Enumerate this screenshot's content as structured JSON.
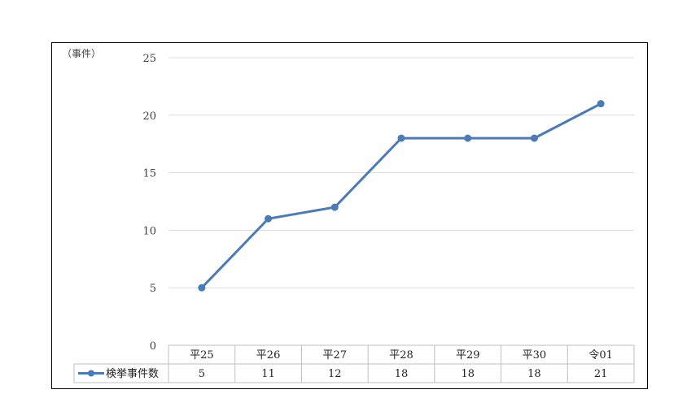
{
  "chart_data": {
    "type": "line",
    "title": "",
    "ylabel": "（事件）",
    "xlabel": "",
    "ylim": [
      0,
      25
    ],
    "yticks": [
      0,
      5,
      10,
      15,
      20,
      25
    ],
    "grid": true,
    "legend": "data-table-left",
    "categories": [
      "平25",
      "平26",
      "平27",
      "平28",
      "平29",
      "平30",
      "令01"
    ],
    "series": [
      {
        "name": "検挙事件数",
        "values": [
          5,
          11,
          12,
          18,
          18,
          18,
          21
        ],
        "color": "#4a7ab8"
      }
    ]
  }
}
